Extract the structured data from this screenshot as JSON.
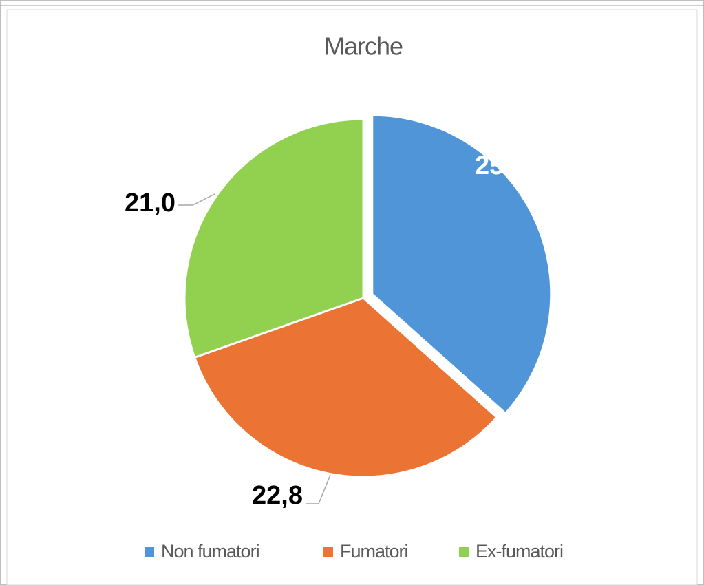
{
  "chart_data": {
    "type": "pie",
    "title": "Marche",
    "categories": [
      "Non fumatori",
      "Fumatori",
      "Ex-fumatori"
    ],
    "values": [
      25.3,
      22.8,
      21.0
    ],
    "value_labels": [
      "25,3",
      "22,8",
      "21,0"
    ],
    "colors": [
      "#4f95d8",
      "#eb7334",
      "#92d050"
    ],
    "legend": "bottom"
  }
}
